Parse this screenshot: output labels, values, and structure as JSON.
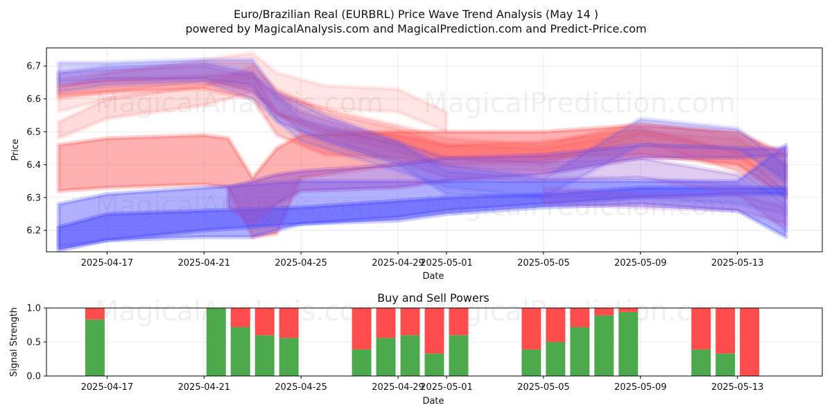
{
  "figure": {
    "title_line1": "Euro/Brazilian Real (EURBRL) Price Wave Trend Analysis (May 14 )",
    "title_line2": "powered by MagicalAnalysis.com and MagicalPrediction.com and Predict-Price.com",
    "watermarks": [
      "MagicalAnalysis.com",
      "MagicalPrediction.com"
    ]
  },
  "chart_data": [
    {
      "type": "area",
      "title": "",
      "xlabel": "Date",
      "ylabel": "Price",
      "xlim": [
        "2025-04-14T12:00",
        "2025-05-16T12:00"
      ],
      "ylim": [
        6.135,
        6.755
      ],
      "xticks": [
        "2025-04-17",
        "2025-04-21",
        "2025-04-25",
        "2025-04-29",
        "2025-05-01",
        "2025-05-05",
        "2025-05-09",
        "2025-05-13"
      ],
      "yticks": [
        6.2,
        6.3,
        6.4,
        6.5,
        6.6,
        6.7
      ],
      "grid": true,
      "colors": {
        "red": "#ff5050",
        "blue": "#5050ff",
        "purple": "#9955cc"
      },
      "bands": [
        {
          "color": "red",
          "opacity": 0.45,
          "points": [
            [
              "2025-04-15",
              6.32,
              6.46
            ],
            [
              "2025-04-17",
              6.33,
              6.48
            ],
            [
              "2025-04-21",
              6.34,
              6.49
            ],
            [
              "2025-04-22",
              6.33,
              6.48
            ],
            [
              "2025-04-23",
              6.18,
              6.36
            ],
            [
              "2025-04-24",
              6.19,
              6.45
            ],
            [
              "2025-04-25",
              6.36,
              6.49
            ],
            [
              "2025-04-29",
              6.4,
              6.5
            ],
            [
              "2025-05-01",
              6.42,
              6.5
            ],
            [
              "2025-05-05",
              6.42,
              6.5
            ],
            [
              "2025-05-09",
              6.43,
              6.52
            ],
            [
              "2025-05-13",
              6.4,
              6.5
            ],
            [
              "2025-05-15",
              6.3,
              6.43
            ]
          ]
        },
        {
          "color": "red",
          "opacity": 0.3,
          "points": [
            [
              "2025-04-15",
              6.61,
              6.64
            ],
            [
              "2025-04-17",
              6.62,
              6.66
            ],
            [
              "2025-04-21",
              6.63,
              6.67
            ],
            [
              "2025-04-23",
              6.6,
              6.68
            ],
            [
              "2025-04-24",
              6.49,
              6.56
            ],
            [
              "2025-04-26",
              6.43,
              6.51
            ],
            [
              "2025-04-29",
              6.42,
              6.49
            ],
            [
              "2025-05-01",
              6.4,
              6.46
            ],
            [
              "2025-05-05",
              6.41,
              6.47
            ],
            [
              "2025-05-09",
              6.47,
              6.51
            ],
            [
              "2025-05-13",
              6.38,
              6.44
            ],
            [
              "2025-05-15",
              6.27,
              6.32
            ]
          ]
        },
        {
          "color": "red",
          "opacity": 0.2,
          "points": [
            [
              "2025-04-15",
              6.48,
              6.53
            ],
            [
              "2025-04-17",
              6.54,
              6.6
            ],
            [
              "2025-04-21",
              6.58,
              6.64
            ],
            [
              "2025-04-23",
              6.62,
              6.7
            ],
            [
              "2025-04-24",
              6.55,
              6.63
            ],
            [
              "2025-04-26",
              6.49,
              6.56
            ],
            [
              "2025-04-29",
              6.44,
              6.51
            ],
            [
              "2025-05-01",
              6.39,
              6.46
            ],
            [
              "2025-05-05",
              6.38,
              6.45
            ],
            [
              "2025-05-09",
              6.43,
              6.5
            ],
            [
              "2025-05-13",
              6.42,
              6.48
            ],
            [
              "2025-05-15",
              6.34,
              6.4
            ]
          ]
        },
        {
          "color": "red",
          "opacity": 0.15,
          "points": [
            [
              "2025-04-15",
              6.56,
              6.63
            ],
            [
              "2025-04-17",
              6.6,
              6.68
            ],
            [
              "2025-04-21",
              6.64,
              6.72
            ],
            [
              "2025-04-23",
              6.66,
              6.74
            ],
            [
              "2025-04-24",
              6.6,
              6.68
            ],
            [
              "2025-04-26",
              6.57,
              6.64
            ],
            [
              "2025-04-29",
              6.56,
              6.63
            ],
            [
              "2025-05-01",
              6.5,
              6.56
            ]
          ]
        },
        {
          "color": "red",
          "opacity": 0.2,
          "points": [
            [
              "2025-04-15",
              6.6,
              6.66
            ],
            [
              "2025-04-17",
              6.62,
              6.68
            ],
            [
              "2025-04-21",
              6.65,
              6.71
            ],
            [
              "2025-04-23",
              6.63,
              6.71
            ],
            [
              "2025-04-24",
              6.55,
              6.62
            ],
            [
              "2025-04-26",
              6.5,
              6.57
            ],
            [
              "2025-04-29",
              6.46,
              6.52
            ],
            [
              "2025-05-01",
              6.42,
              6.48
            ],
            [
              "2025-05-05",
              6.4,
              6.46
            ],
            [
              "2025-05-09",
              6.49,
              6.53
            ],
            [
              "2025-05-13",
              6.44,
              6.49
            ],
            [
              "2025-05-15",
              6.36,
              6.42
            ]
          ]
        },
        {
          "color": "blue",
          "opacity": 0.45,
          "points": [
            [
              "2025-04-15",
              6.15,
              6.28
            ],
            [
              "2025-04-17",
              6.17,
              6.31
            ],
            [
              "2025-04-21",
              6.18,
              6.33
            ],
            [
              "2025-04-23",
              6.18,
              6.34
            ],
            [
              "2025-04-25",
              6.22,
              6.35
            ],
            [
              "2025-04-29",
              6.23,
              6.35
            ],
            [
              "2025-05-01",
              6.25,
              6.35
            ],
            [
              "2025-05-05",
              6.27,
              6.35
            ],
            [
              "2025-05-09",
              6.28,
              6.35
            ],
            [
              "2025-05-13",
              6.26,
              6.35
            ],
            [
              "2025-05-15",
              6.18,
              6.46
            ]
          ]
        },
        {
          "color": "blue",
          "opacity": 0.6,
          "points": [
            [
              "2025-04-15",
              6.14,
              6.21
            ],
            [
              "2025-04-17",
              6.17,
              6.25
            ],
            [
              "2025-04-21",
              6.2,
              6.26
            ],
            [
              "2025-04-25",
              6.22,
              6.27
            ],
            [
              "2025-04-29",
              6.24,
              6.29
            ],
            [
              "2025-05-01",
              6.26,
              6.3
            ],
            [
              "2025-05-05",
              6.28,
              6.31
            ],
            [
              "2025-05-09",
              6.3,
              6.33
            ],
            [
              "2025-05-13",
              6.31,
              6.33
            ],
            [
              "2025-05-15",
              6.31,
              6.33
            ]
          ]
        },
        {
          "color": "purple",
          "opacity": 0.55,
          "points": [
            [
              "2025-04-22",
              6.27,
              6.33
            ],
            [
              "2025-04-23",
              6.22,
              6.35
            ],
            [
              "2025-04-24",
              6.28,
              6.37
            ],
            [
              "2025-04-25",
              6.32,
              6.38
            ],
            [
              "2025-04-29",
              6.33,
              6.4
            ],
            [
              "2025-05-01",
              6.35,
              6.42
            ],
            [
              "2025-05-05",
              6.37,
              6.43
            ],
            [
              "2025-05-09",
              6.42,
              6.46
            ],
            [
              "2025-05-13",
              6.42,
              6.45
            ],
            [
              "2025-05-15",
              6.43,
              6.45
            ]
          ]
        },
        {
          "color": "blue",
          "opacity": 0.25,
          "points": [
            [
              "2025-04-15",
              6.65,
              6.71
            ],
            [
              "2025-04-17",
              6.66,
              6.71
            ],
            [
              "2025-04-21",
              6.66,
              6.72
            ],
            [
              "2025-04-23",
              6.64,
              6.72
            ],
            [
              "2025-04-24",
              6.53,
              6.62
            ],
            [
              "2025-04-26",
              6.47,
              6.55
            ],
            [
              "2025-04-29",
              6.4,
              6.47
            ],
            [
              "2025-05-01",
              6.31,
              6.38
            ],
            [
              "2025-05-05",
              6.3,
              6.36
            ],
            [
              "2025-05-09",
              6.46,
              6.54
            ],
            [
              "2025-05-13",
              6.45,
              6.51
            ],
            [
              "2025-05-15",
              6.35,
              6.4
            ]
          ]
        },
        {
          "color": "blue",
          "opacity": 0.2,
          "points": [
            [
              "2025-04-15",
              6.62,
              6.68
            ],
            [
              "2025-04-17",
              6.64,
              6.7
            ],
            [
              "2025-04-21",
              6.65,
              6.71
            ],
            [
              "2025-04-23",
              6.6,
              6.68
            ],
            [
              "2025-04-25",
              6.47,
              6.54
            ],
            [
              "2025-04-29",
              6.38,
              6.46
            ],
            [
              "2025-05-01",
              6.33,
              6.4
            ],
            [
              "2025-05-05",
              6.3,
              6.36
            ],
            [
              "2025-05-09",
              6.3,
              6.36
            ],
            [
              "2025-05-13",
              6.28,
              6.34
            ],
            [
              "2025-05-15",
              6.25,
              6.31
            ]
          ]
        },
        {
          "color": "purple",
          "opacity": 0.3,
          "points": [
            [
              "2025-04-15",
              6.64,
              6.68
            ],
            [
              "2025-04-17",
              6.65,
              6.69
            ],
            [
              "2025-04-21",
              6.66,
              6.7
            ],
            [
              "2025-04-23",
              6.62,
              6.67
            ],
            [
              "2025-04-25",
              6.5,
              6.56
            ],
            [
              "2025-04-29",
              6.41,
              6.47
            ],
            [
              "2025-05-01",
              6.36,
              6.42
            ],
            [
              "2025-05-05",
              6.35,
              6.41
            ],
            [
              "2025-05-09",
              6.36,
              6.42
            ],
            [
              "2025-05-13",
              6.31,
              6.37
            ],
            [
              "2025-05-15",
              6.2,
              6.26
            ]
          ]
        },
        {
          "color": "purple",
          "opacity": 0.3,
          "points": [
            [
              "2025-05-05",
              6.28,
              6.33
            ],
            [
              "2025-05-09",
              6.27,
              6.31
            ],
            [
              "2025-05-13",
              6.26,
              6.31
            ],
            [
              "2025-05-15",
              6.22,
              6.27
            ]
          ]
        }
      ]
    },
    {
      "type": "bar",
      "title": "Buy and Sell Powers",
      "xlabel": "Date",
      "ylabel": "Signal Strength",
      "xlim": [
        "2025-04-14T12:00",
        "2025-05-16T12:00"
      ],
      "ylim": [
        0,
        1
      ],
      "xticks": [
        "2025-04-17",
        "2025-04-21",
        "2025-04-25",
        "2025-04-29",
        "2025-05-01",
        "2025-05-05",
        "2025-05-09",
        "2025-05-13"
      ],
      "yticks": [
        "0.0",
        "0.5",
        "1.0"
      ],
      "grid": true,
      "colors": {
        "buy": "#4caa4c",
        "sell": "#ff4d4d"
      },
      "series": [
        {
          "name": "buy",
          "values": [
            0.83,
            1.0,
            0.72,
            0.6,
            0.56,
            0.39,
            0.56,
            0.6,
            0.33,
            0.6,
            0.39,
            0.5,
            0.72,
            0.89,
            0.94,
            0.39,
            0.33,
            0.0
          ]
        },
        {
          "name": "sell",
          "values": [
            0.17,
            0.0,
            0.28,
            0.4,
            0.44,
            0.61,
            0.44,
            0.4,
            0.67,
            0.4,
            0.61,
            0.5,
            0.28,
            0.11,
            0.06,
            0.61,
            0.67,
            1.0
          ]
        }
      ],
      "categories": [
        "2025-04-16",
        "2025-04-21",
        "2025-04-22",
        "2025-04-23",
        "2025-04-24",
        "2025-04-27",
        "2025-04-28",
        "2025-04-29",
        "2025-04-30",
        "2025-05-01",
        "2025-05-04",
        "2025-05-05",
        "2025-05-06",
        "2025-05-07",
        "2025-05-08",
        "2025-05-11",
        "2025-05-12",
        "2025-05-13"
      ]
    }
  ]
}
